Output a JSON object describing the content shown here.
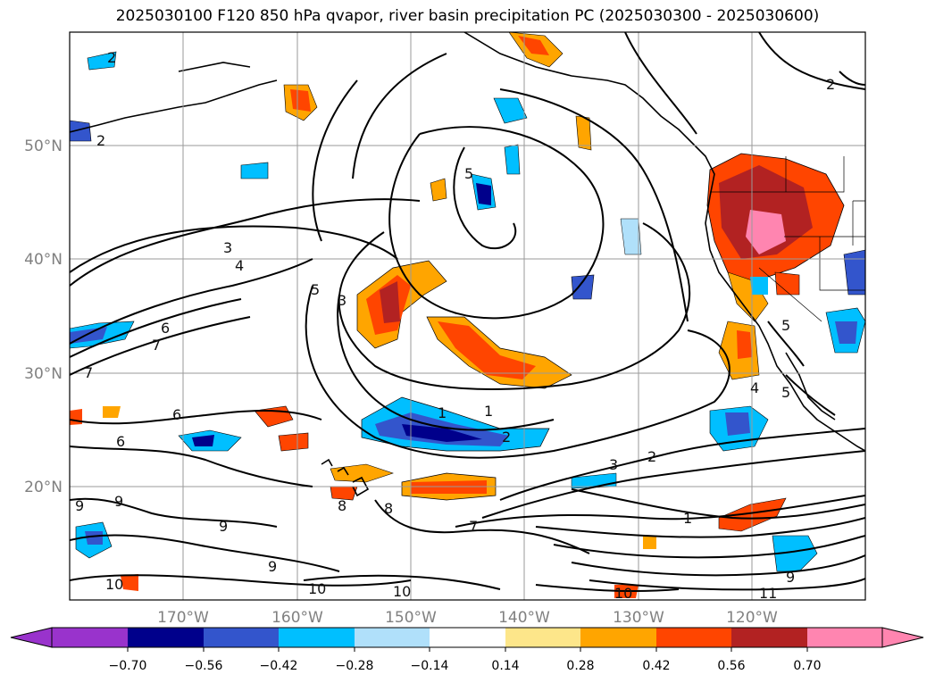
{
  "title": "2025030100 F120 850 hPa qvapor, river basin precipitation PC (2025030300 - 2025030600)",
  "map": {
    "lat_labels": [
      "50°N",
      "40°N",
      "30°N",
      "20°N"
    ],
    "lon_labels": [
      "170°W",
      "160°W",
      "150°W",
      "140°W",
      "130°W",
      "120°W"
    ],
    "contour_labels": [
      "2",
      "2",
      "3",
      "4",
      "5",
      "3",
      "6",
      "7",
      "7",
      "6",
      "6",
      "5",
      "1",
      "1",
      "2",
      "3",
      "2",
      "1",
      "9",
      "9",
      "9",
      "8",
      "8",
      "7",
      "10",
      "10",
      "10",
      "10",
      "11",
      "9",
      "5",
      "4",
      "5",
      "2",
      "9"
    ]
  },
  "colorbar": {
    "ticks": [
      "−0.70",
      "−0.56",
      "−0.42",
      "−0.28",
      "−0.14",
      "0.14",
      "0.28",
      "0.42",
      "0.56",
      "0.70"
    ],
    "colors": [
      "#9933cc",
      "#00008b",
      "#3355cc",
      "#00bfff",
      "#b0e0fa",
      "#ffffff",
      "#fde68a",
      "#ffa500",
      "#ff4500",
      "#b22222",
      "#ff85b0"
    ]
  }
}
